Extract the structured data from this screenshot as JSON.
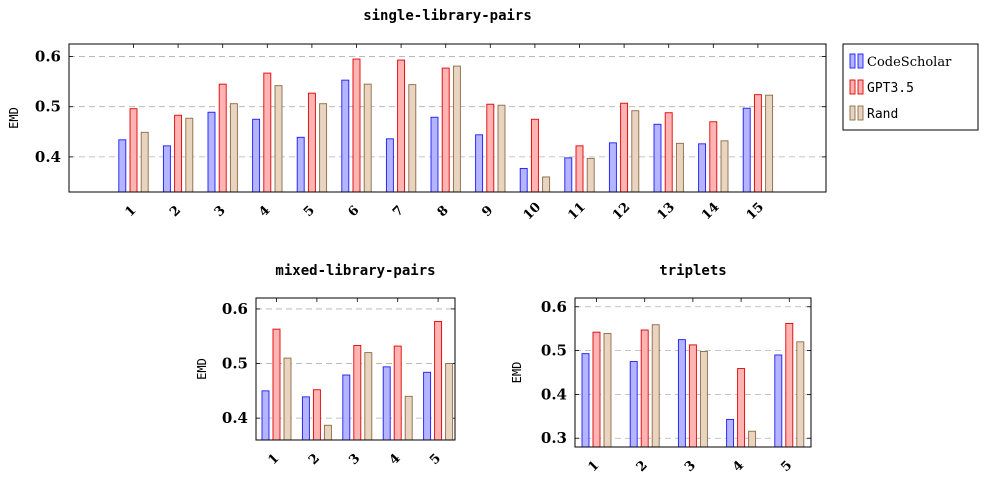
{
  "colors": {
    "CodeScholar": {
      "fill": "#b4b4ff",
      "stroke": "#1a1aff"
    },
    "GPT3.5": {
      "fill": "#ffb4b4",
      "stroke": "#e00000"
    },
    "Rand": {
      "fill": "#e8d4bf",
      "stroke": "#8c6a46"
    }
  },
  "legend": [
    {
      "name": "CodeScholar",
      "font": "serif"
    },
    {
      "name": "GPT3.5",
      "font": "mono"
    },
    {
      "name": "Rand",
      "font": "mono"
    }
  ],
  "chart_data": [
    {
      "type": "bar",
      "title": "single-library-pairs",
      "ylabel": "EMD",
      "ylim": [
        0.33,
        0.625
      ],
      "yticks": [
        "0.4",
        "0.5",
        "0.6"
      ],
      "grid": "dashed-horizontal",
      "categories": [
        "1",
        "2",
        "3",
        "4",
        "5",
        "6",
        "7",
        "8",
        "9",
        "10",
        "11",
        "12",
        "13",
        "14",
        "15"
      ],
      "series": [
        {
          "name": "CodeScholar",
          "values": [
            0.434,
            0.422,
            0.489,
            0.475,
            0.439,
            0.553,
            0.436,
            0.479,
            0.444,
            0.377,
            0.398,
            0.428,
            0.465,
            0.426,
            0.497
          ]
        },
        {
          "name": "GPT3.5",
          "values": [
            0.496,
            0.483,
            0.545,
            0.567,
            0.527,
            0.595,
            0.593,
            0.577,
            0.505,
            0.475,
            0.422,
            0.507,
            0.488,
            0.47,
            0.524
          ]
        },
        {
          "name": "Rand",
          "values": [
            0.449,
            0.477,
            0.506,
            0.542,
            0.506,
            0.545,
            0.544,
            0.581,
            0.503,
            0.36,
            0.397,
            0.492,
            0.427,
            0.432,
            0.523
          ]
        }
      ]
    },
    {
      "type": "bar",
      "title": "mixed-library-pairs",
      "ylabel": "EMD",
      "ylim": [
        0.36,
        0.62
      ],
      "yticks": [
        "0.4",
        "0.5",
        "0.6"
      ],
      "grid": "dashed-horizontal",
      "categories": [
        "1",
        "2",
        "3",
        "4",
        "5"
      ],
      "series": [
        {
          "name": "CodeScholar",
          "values": [
            0.45,
            0.439,
            0.479,
            0.494,
            0.484
          ]
        },
        {
          "name": "GPT3.5",
          "values": [
            0.563,
            0.452,
            0.533,
            0.532,
            0.577
          ]
        },
        {
          "name": "Rand",
          "values": [
            0.51,
            0.387,
            0.52,
            0.44,
            0.5
          ]
        }
      ]
    },
    {
      "type": "bar",
      "title": "triplets",
      "ylabel": "EMD",
      "ylim": [
        0.28,
        0.62
      ],
      "yticks": [
        "0.3",
        "0.4",
        "0.5",
        "0.6"
      ],
      "grid": "dashed-horizontal",
      "categories": [
        "1",
        "2",
        "3",
        "4",
        "5"
      ],
      "series": [
        {
          "name": "CodeScholar",
          "values": [
            0.493,
            0.475,
            0.525,
            0.343,
            0.49
          ]
        },
        {
          "name": "GPT3.5",
          "values": [
            0.542,
            0.547,
            0.513,
            0.459,
            0.562
          ]
        },
        {
          "name": "Rand",
          "values": [
            0.539,
            0.559,
            0.498,
            0.316,
            0.52
          ]
        }
      ]
    }
  ]
}
